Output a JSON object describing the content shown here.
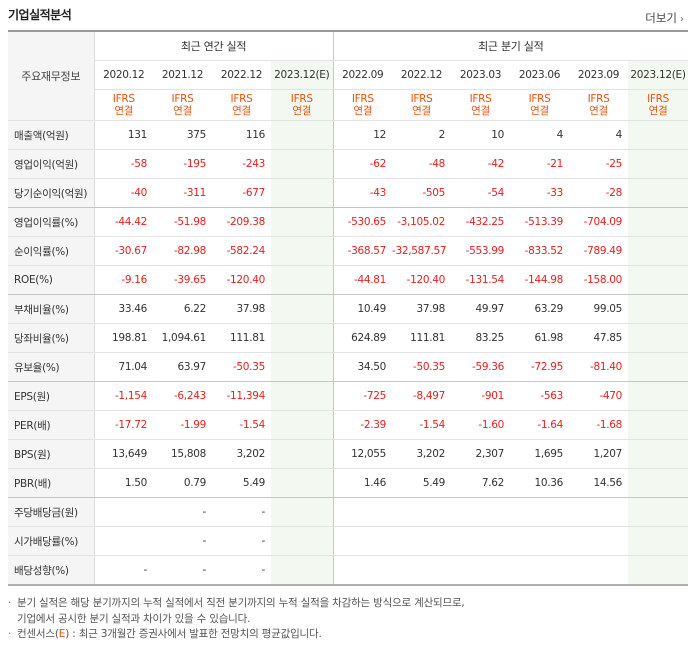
{
  "header": {
    "title": "기업실적분석",
    "more_label": "더보기",
    "more_icon": "chevron-right-icon"
  },
  "table": {
    "label_header": "주요재무정보",
    "annual_group": "최근 연간 실적",
    "quarter_group": "최근 분기 실적",
    "annual_periods": [
      "2020.12",
      "2021.12",
      "2022.12",
      "2023.12(E)"
    ],
    "quarter_periods": [
      "2022.09",
      "2022.12",
      "2023.03",
      "2023.06",
      "2023.09",
      "2023.12(E)"
    ],
    "ifrs_line1": "IFRS",
    "ifrs_line2": "연결",
    "rows": [
      {
        "label": "매출액(억원)",
        "annual": [
          "131",
          "375",
          "116",
          ""
        ],
        "quarter": [
          "12",
          "2",
          "10",
          "4",
          "4",
          ""
        ]
      },
      {
        "label": "영업이익(억원)",
        "annual": [
          "-58",
          "-195",
          "-243",
          ""
        ],
        "quarter": [
          "-62",
          "-48",
          "-42",
          "-21",
          "-25",
          ""
        ]
      },
      {
        "label": "당기순이익(억원)",
        "annual": [
          "-40",
          "-311",
          "-677",
          ""
        ],
        "quarter": [
          "-43",
          "-505",
          "-54",
          "-33",
          "-28",
          ""
        ]
      },
      {
        "label": "영업이익률(%)",
        "annual": [
          "-44.42",
          "-51.98",
          "-209.38",
          ""
        ],
        "quarter": [
          "-530.65",
          "-3,105.02",
          "-432.25",
          "-513.39",
          "-704.09",
          ""
        ]
      },
      {
        "label": "순이익률(%)",
        "annual": [
          "-30.67",
          "-82.98",
          "-582.24",
          ""
        ],
        "quarter": [
          "-368.57",
          "-32,587.57",
          "-553.99",
          "-833.52",
          "-789.49",
          ""
        ]
      },
      {
        "label": "ROE(%)",
        "annual": [
          "-9.16",
          "-39.65",
          "-120.40",
          ""
        ],
        "quarter": [
          "-44.81",
          "-120.40",
          "-131.54",
          "-144.98",
          "-158.00",
          ""
        ]
      },
      {
        "label": "부채비율(%)",
        "annual": [
          "33.46",
          "6.22",
          "37.98",
          ""
        ],
        "quarter": [
          "10.49",
          "37.98",
          "49.97",
          "63.29",
          "99.05",
          ""
        ]
      },
      {
        "label": "당좌비율(%)",
        "annual": [
          "198.81",
          "1,094.61",
          "111.81",
          ""
        ],
        "quarter": [
          "624.89",
          "111.81",
          "83.25",
          "61.98",
          "47.85",
          ""
        ]
      },
      {
        "label": "유보율(%)",
        "annual": [
          "71.04",
          "63.97",
          "-50.35",
          ""
        ],
        "quarter": [
          "34.50",
          "-50.35",
          "-59.36",
          "-72.95",
          "-81.40",
          ""
        ]
      },
      {
        "label": "EPS(원)",
        "annual": [
          "-1,154",
          "-6,243",
          "-11,394",
          ""
        ],
        "quarter": [
          "-725",
          "-8,497",
          "-901",
          "-563",
          "-470",
          ""
        ]
      },
      {
        "label": "PER(배)",
        "annual": [
          "-17.72",
          "-1.99",
          "-1.54",
          ""
        ],
        "quarter": [
          "-2.39",
          "-1.54",
          "-1.60",
          "-1.64",
          "-1.68",
          ""
        ]
      },
      {
        "label": "BPS(원)",
        "annual": [
          "13,649",
          "15,808",
          "3,202",
          ""
        ],
        "quarter": [
          "12,055",
          "3,202",
          "2,307",
          "1,695",
          "1,207",
          ""
        ]
      },
      {
        "label": "PBR(배)",
        "annual": [
          "1.50",
          "0.79",
          "5.49",
          ""
        ],
        "quarter": [
          "1.46",
          "5.49",
          "7.62",
          "10.36",
          "14.56",
          ""
        ]
      },
      {
        "label": "주당배당금(원)",
        "annual": [
          "",
          "-",
          "-",
          ""
        ],
        "quarter": [
          "",
          "",
          "",
          "",
          "",
          ""
        ]
      },
      {
        "label": "시가배당률(%)",
        "annual": [
          "",
          "-",
          "-",
          ""
        ],
        "quarter": [
          "",
          "",
          "",
          "",
          "",
          ""
        ]
      },
      {
        "label": "배당성향(%)",
        "annual": [
          "-",
          "-",
          "-",
          ""
        ],
        "quarter": [
          "",
          "",
          "",
          "",
          "",
          ""
        ]
      }
    ]
  },
  "notes": {
    "line1": "분기 실적은 해당 분기까지의 누적 실적에서 직전 분기까지의 누적 실적을 차감하는 방식으로 계산되므로,",
    "line2": "기업에서 공시한 분기 실적과 차이가 있을 수 있습니다.",
    "line3_prefix": "컨센서스(",
    "line3_e": "E",
    "line3_suffix": ") : 최근 3개월간 증권사에서 발표한 전망치의 평균값입니다."
  },
  "colors": {
    "negative": "#e42020",
    "ifrs": "#e5540f",
    "estimate_bg": "#f3f8f1",
    "label_bg": "#f5f5f5"
  }
}
